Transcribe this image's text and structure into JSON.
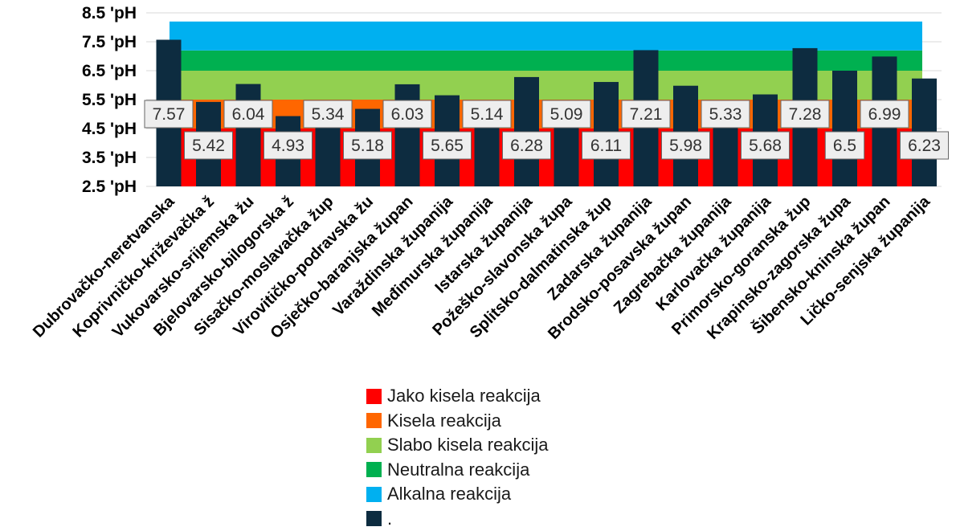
{
  "chart_data": {
    "type": "bar",
    "unit_suffix": " 'pH",
    "ylim": [
      2.5,
      8.5
    ],
    "yticks": [
      2.5,
      3.5,
      4.5,
      5.5,
      6.5,
      7.5,
      8.5
    ],
    "ytick_labels": [
      "2.5 'pH",
      "3.5 'pH",
      "4.5 'pH",
      "5.5 'pH",
      "6.5 'pH",
      "7.5 'pH",
      "8.5 'pH"
    ],
    "categories": [
      "Dubrovačko-neretvanska",
      "Koprivničko-križevačka ž",
      "Vukovarsko-srijemska žu",
      "Bjelovarsko-bilogorska ž",
      "Sisačko-moslavačka žup",
      "Virovitičko-podravska žu",
      "Osječko-baranjska župan",
      "Varaždinska županija",
      "Međimurska županija",
      "Istarska županija",
      "Požeško-slavonska župa",
      "Splitsko-dalmatinska žup",
      "Zadarska županija",
      "Brodsko-posavska župan",
      "Zagrebačka županija",
      "Karlovačka županija",
      "Primorsko-goranska žup",
      "Krapinsko-zagorska župa",
      "Šibensko-kninska župan",
      "Ličko-senjska županija"
    ],
    "series": [
      {
        "name": "Jako kisela reakcija",
        "color": "#ff0000",
        "kind": "band",
        "range": [
          2.5,
          4.5
        ]
      },
      {
        "name": "Kisela reakcija",
        "color": "#ff6600",
        "kind": "band",
        "range": [
          4.5,
          5.5
        ]
      },
      {
        "name": "Slabo kisela reakcija",
        "color": "#92d050",
        "kind": "band",
        "range": [
          5.5,
          6.5
        ]
      },
      {
        "name": "Neutralna reakcija",
        "color": "#00b050",
        "kind": "band",
        "range": [
          6.5,
          7.2
        ]
      },
      {
        "name": "Alkalna reakcija",
        "color": "#00b0f0",
        "kind": "band",
        "range": [
          7.2,
          8.2
        ]
      },
      {
        "name": ".",
        "color": "#0d2c40",
        "kind": "bar",
        "values": [
          7.57,
          5.42,
          6.04,
          4.93,
          5.34,
          5.18,
          6.03,
          5.65,
          5.14,
          6.28,
          5.09,
          6.11,
          7.21,
          5.98,
          5.33,
          5.68,
          7.28,
          6.5,
          6.99,
          6.23
        ],
        "labels": [
          "7.57",
          "5.42",
          "6.04",
          "4.93",
          "5.34",
          "5.18",
          "6.03",
          "5.65",
          "5.14",
          "6.28",
          "5.09",
          "6.11",
          "7.21",
          "5.98",
          "5.33",
          "5.68",
          "7.28",
          "6.5",
          "6.99",
          "6.23"
        ]
      }
    ],
    "legend_position": "bottom"
  }
}
